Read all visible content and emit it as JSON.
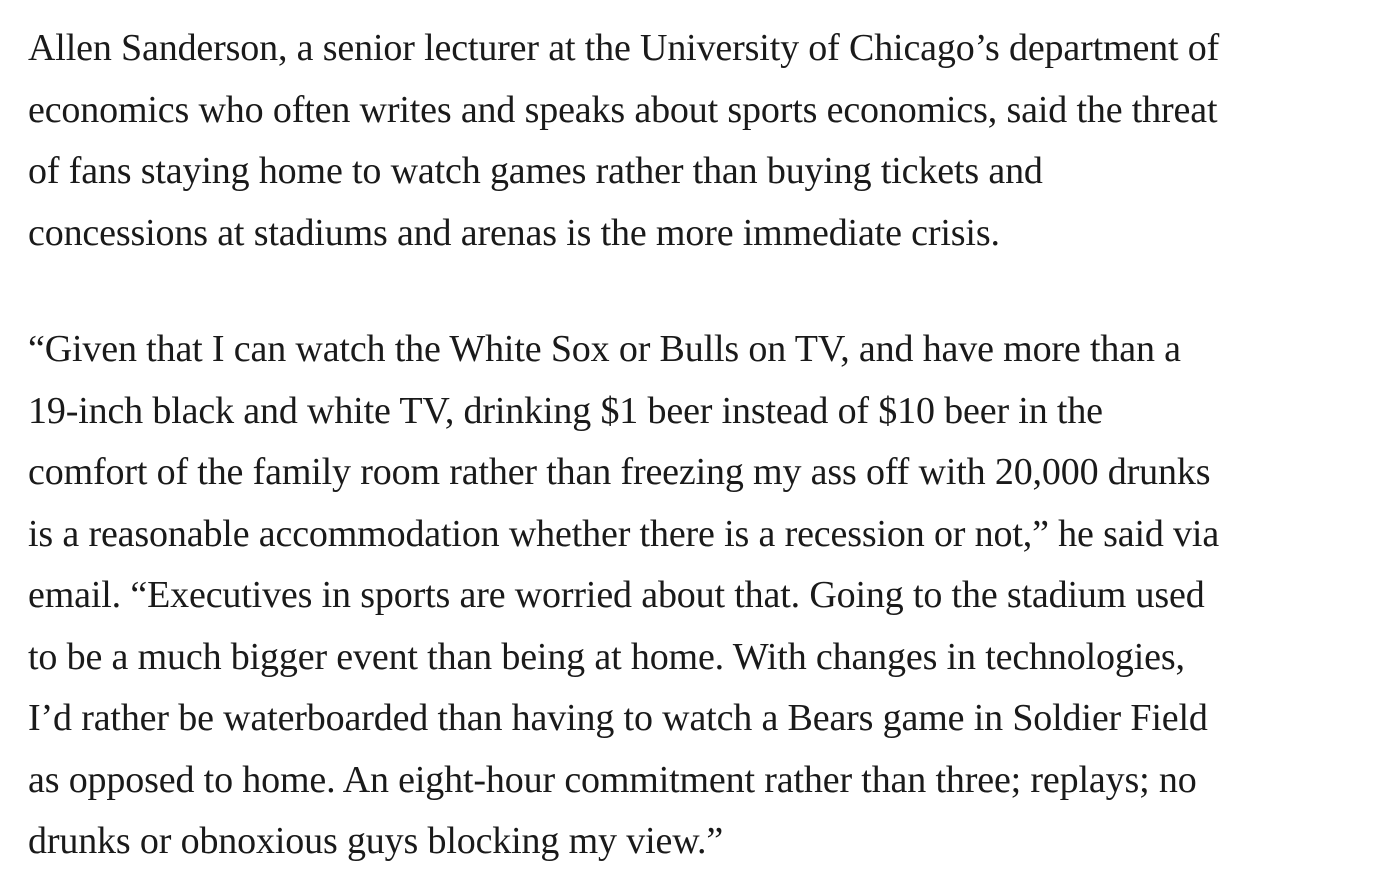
{
  "article": {
    "paragraphs": [
      {
        "lines": [
          "Allen Sanderson, a senior lecturer at the University of Chicago’s department of",
          "economics who often writes and speaks about sports economics, said the threat",
          "of fans staying home to watch games rather than buying tickets and",
          "concessions at stadiums and arenas is the more immediate crisis."
        ]
      },
      {
        "lines": [
          "“Given that I can watch the White Sox or Bulls on TV, and have more than a",
          "19-inch black and white TV, drinking $1 beer instead of $10 beer in the",
          "comfort of the family room rather than freezing my ass off with 20,000 drunks",
          "is a reasonable accommodation whether there is a recession or not,” he said via",
          "email. “Executives in sports are worried about that. Going to the stadium used",
          "to be a much bigger event than being at home. With changes in technologies,",
          "I’d rather be waterboarded than having to watch a Bears game in Soldier Field",
          "as opposed to home. An eight-hour commitment rather than three; replays; no",
          "drunks or obnoxious guys blocking my view.”"
        ]
      }
    ]
  }
}
